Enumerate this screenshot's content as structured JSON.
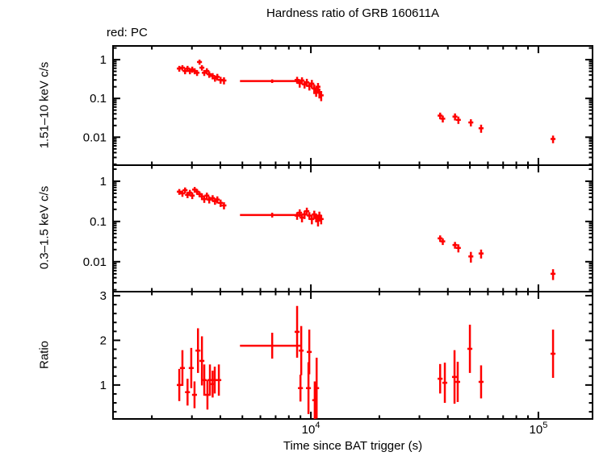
{
  "chart_data": {
    "type": "scatter",
    "title": "Hardness ratio of GRB 160611A",
    "mode_label": "red: PC",
    "xlabel": "Time since BAT trigger (s)",
    "xscale": "log",
    "xlim": [
      1350,
      173000
    ],
    "x_major_ticks": [
      {
        "value": 10000,
        "label": "10^4"
      },
      {
        "value": 100000,
        "label": "10^5"
      }
    ],
    "series_color": "#ff0000",
    "axis_color": "#000000",
    "legend_note": "points are red crosses with time and value error bars; PC mode data",
    "panels": [
      {
        "id": "hard",
        "ylabel": "1.51–10 keV c/s",
        "yscale": "log",
        "ylim": [
          0.0019,
          2.26
        ],
        "yticks": [
          {
            "value": 1,
            "label": "1"
          },
          {
            "value": 0.1,
            "label": "0.1"
          },
          {
            "value": 0.01,
            "label": "0.01"
          }
        ],
        "points": [
          [
            2640,
            0.59,
            0.1
          ],
          [
            2725,
            0.62,
            0.1
          ],
          [
            2800,
            0.51,
            0.09
          ],
          [
            2870,
            0.59,
            0.1
          ],
          [
            2940,
            0.51,
            0.09
          ],
          [
            3010,
            0.56,
            0.1
          ],
          [
            3085,
            0.51,
            0.09
          ],
          [
            3160,
            0.46,
            0.08
          ],
          [
            3240,
            0.87,
            0.13
          ],
          [
            3320,
            0.62,
            0.1
          ],
          [
            3400,
            0.46,
            0.08
          ],
          [
            3490,
            0.51,
            0.09
          ],
          [
            3575,
            0.42,
            0.08
          ],
          [
            3700,
            0.38,
            0.07
          ],
          [
            3790,
            0.33,
            0.06
          ],
          [
            3880,
            0.36,
            0.07
          ],
          [
            4010,
            0.3,
            0.06
          ],
          [
            4150,
            0.29,
            0.06
          ],
          [
            6760,
            0.28,
            0.03,
            4880,
            9070
          ],
          [
            8700,
            0.3,
            0.06
          ],
          [
            8930,
            0.25,
            0.06
          ],
          [
            9140,
            0.29,
            0.06
          ],
          [
            9380,
            0.23,
            0.05
          ],
          [
            9600,
            0.26,
            0.06
          ],
          [
            9850,
            0.21,
            0.05
          ],
          [
            10100,
            0.24,
            0.06
          ],
          [
            10350,
            0.18,
            0.05
          ],
          [
            10550,
            0.15,
            0.04
          ],
          [
            10750,
            0.2,
            0.05
          ],
          [
            10900,
            0.14,
            0.04
          ],
          [
            11100,
            0.12,
            0.035
          ],
          [
            37000,
            0.036,
            0.007
          ],
          [
            38000,
            0.03,
            0.006
          ],
          [
            43000,
            0.034,
            0.007
          ],
          [
            44500,
            0.028,
            0.006
          ],
          [
            50500,
            0.024,
            0.005
          ],
          [
            56000,
            0.017,
            0.004
          ],
          [
            116000,
            0.009,
            0.002
          ]
        ]
      },
      {
        "id": "soft",
        "ylabel": "0.3–1.5 keV c/s",
        "yscale": "log",
        "ylim": [
          0.0018,
          2.51
        ],
        "yticks": [
          {
            "value": 1,
            "label": "1"
          },
          {
            "value": 0.1,
            "label": "0.1"
          },
          {
            "value": 0.01,
            "label": "0.01"
          }
        ],
        "points": [
          [
            2640,
            0.55,
            0.09
          ],
          [
            2725,
            0.5,
            0.09
          ],
          [
            2800,
            0.6,
            0.1
          ],
          [
            2870,
            0.46,
            0.08
          ],
          [
            2940,
            0.52,
            0.09
          ],
          [
            3010,
            0.44,
            0.08
          ],
          [
            3085,
            0.62,
            0.1
          ],
          [
            3160,
            0.55,
            0.09
          ],
          [
            3240,
            0.48,
            0.08
          ],
          [
            3320,
            0.42,
            0.08
          ],
          [
            3400,
            0.36,
            0.07
          ],
          [
            3490,
            0.44,
            0.08
          ],
          [
            3575,
            0.35,
            0.07
          ],
          [
            3700,
            0.38,
            0.07
          ],
          [
            3790,
            0.32,
            0.06
          ],
          [
            3880,
            0.35,
            0.07
          ],
          [
            4010,
            0.29,
            0.06
          ],
          [
            4150,
            0.25,
            0.05
          ],
          [
            6760,
            0.145,
            0.02,
            4880,
            9070
          ],
          [
            8700,
            0.14,
            0.03
          ],
          [
            8930,
            0.165,
            0.035
          ],
          [
            9140,
            0.125,
            0.03
          ],
          [
            9380,
            0.15,
            0.035
          ],
          [
            9600,
            0.18,
            0.04
          ],
          [
            9850,
            0.14,
            0.03
          ],
          [
            10100,
            0.115,
            0.03
          ],
          [
            10350,
            0.15,
            0.035
          ],
          [
            10550,
            0.125,
            0.03
          ],
          [
            10750,
            0.105,
            0.03
          ],
          [
            10900,
            0.14,
            0.035
          ],
          [
            11100,
            0.115,
            0.03
          ],
          [
            37000,
            0.038,
            0.007
          ],
          [
            38000,
            0.032,
            0.006
          ],
          [
            43000,
            0.026,
            0.005
          ],
          [
            44500,
            0.022,
            0.005
          ],
          [
            50500,
            0.0135,
            0.004
          ],
          [
            56000,
            0.016,
            0.004
          ],
          [
            116000,
            0.005,
            0.0015
          ]
        ]
      },
      {
        "id": "ratio",
        "ylabel": "Ratio",
        "yscale": "linear",
        "ylim": [
          0.24,
          3.09
        ],
        "minor_step": 0.2,
        "yticks": [
          {
            "value": 3,
            "label": "3"
          },
          {
            "value": 2,
            "label": "2"
          },
          {
            "value": 1,
            "label": "1"
          }
        ],
        "points": [
          [
            2640,
            1.0,
            0.36
          ],
          [
            2725,
            1.38,
            0.4
          ],
          [
            2870,
            0.84,
            0.3
          ],
          [
            2980,
            1.38,
            0.45
          ],
          [
            3080,
            0.78,
            0.3
          ],
          [
            3190,
            1.77,
            0.5
          ],
          [
            3320,
            1.54,
            0.55
          ],
          [
            3400,
            1.11,
            0.35
          ],
          [
            3510,
            0.78,
            0.33
          ],
          [
            3600,
            1.11,
            0.35
          ],
          [
            3700,
            1.02,
            0.3
          ],
          [
            3780,
            1.11,
            0.3
          ],
          [
            3940,
            1.11,
            0.35
          ],
          [
            6760,
            1.88,
            0.29,
            4880,
            9070
          ],
          [
            8700,
            2.19,
            0.58
          ],
          [
            9000,
            0.93,
            0.3
          ],
          [
            9070,
            1.77,
            0.55
          ],
          [
            9760,
            0.93,
            0.58
          ],
          [
            9840,
            1.74,
            0.5
          ],
          [
            10400,
            0.66,
            0.42
          ],
          [
            10600,
            0.93,
            0.68
          ],
          [
            37000,
            1.14,
            0.33
          ],
          [
            38800,
            1.05,
            0.45
          ],
          [
            42800,
            1.18,
            0.6
          ],
          [
            44200,
            1.07,
            0.45
          ],
          [
            50000,
            1.81,
            0.54
          ],
          [
            56000,
            1.07,
            0.37
          ],
          [
            116000,
            1.7,
            0.54
          ]
        ]
      }
    ]
  }
}
